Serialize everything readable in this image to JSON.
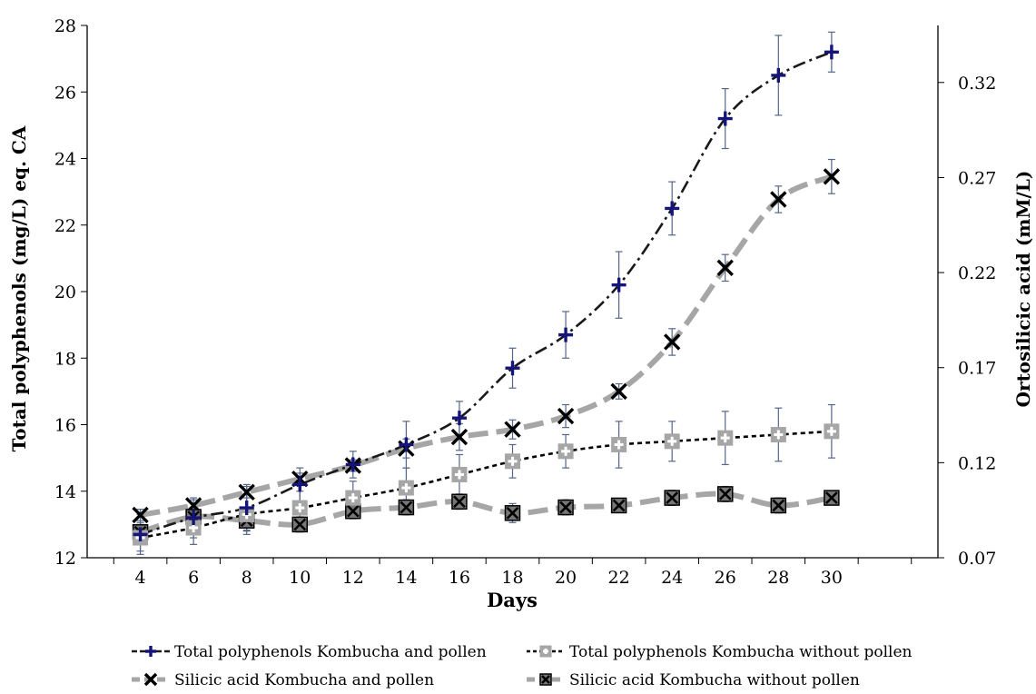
{
  "chart_data": {
    "type": "line",
    "title": "",
    "xlabel": "Days",
    "ylabel": "Total polyphenols (mg/L) eq. CA",
    "y2label": "Ortosilicic acid (mM/L)",
    "xlim": [
      2,
      34
    ],
    "ylim": [
      12,
      28
    ],
    "y2lim": [
      0.07,
      0.35
    ],
    "x_ticks": [
      4,
      6,
      8,
      10,
      12,
      14,
      16,
      18,
      20,
      22,
      24,
      26,
      28,
      30
    ],
    "y_ticks": [
      12,
      14,
      16,
      18,
      20,
      22,
      24,
      26,
      28
    ],
    "y2_ticks": [
      0.07,
      0.12,
      0.17,
      0.22,
      0.27,
      0.32
    ],
    "grid": false,
    "legend_position": "bottom",
    "x": [
      4,
      6,
      8,
      10,
      12,
      14,
      16,
      18,
      20,
      22,
      24,
      26,
      28,
      30
    ],
    "series": [
      {
        "name": "Total polyphenols Kombucha and pollen",
        "axis": "left",
        "marker": "plus",
        "line": "dash-dot",
        "line_color": "#1a1a1a",
        "marker_color": "#14147a",
        "values": [
          12.7,
          13.2,
          13.5,
          14.2,
          14.8,
          15.4,
          16.2,
          17.7,
          18.7,
          20.2,
          22.5,
          25.2,
          26.5,
          27.2
        ],
        "errors": [
          0.6,
          0.6,
          0.7,
          0.5,
          0.4,
          0.7,
          0.5,
          0.6,
          0.7,
          1.0,
          0.8,
          0.9,
          1.2,
          0.6
        ]
      },
      {
        "name": "Total polyphenols Kombucha without pollen",
        "axis": "left",
        "marker": "square-plus",
        "line": "dotted",
        "line_color": "#000000",
        "marker_color": "#a6a6a6",
        "values": [
          12.6,
          12.9,
          13.3,
          13.5,
          13.8,
          14.1,
          14.5,
          14.9,
          15.2,
          15.4,
          15.5,
          15.6,
          15.7,
          15.8
        ],
        "errors": [
          0.4,
          0.5,
          0.6,
          0.5,
          0.5,
          0.6,
          0.6,
          0.5,
          0.5,
          0.7,
          0.6,
          0.8,
          0.8,
          0.8
        ]
      },
      {
        "name": "Silicic acid Kombucha and pollen",
        "axis": "right",
        "marker": "x",
        "line": "dashed",
        "line_color": "#a6a6a6",
        "marker_color": "#000000",
        "values": [
          0.0925,
          0.0975,
          0.1045,
          0.1115,
          0.1185,
          0.1275,
          0.1335,
          0.1375,
          0.1445,
          0.1575,
          0.1835,
          0.2225,
          0.2585,
          0.2705
        ],
        "errors": [
          0.003,
          0.003,
          0.003,
          0.003,
          0.003,
          0.005,
          0.007,
          0.005,
          0.006,
          0.004,
          0.007,
          0.007,
          0.007,
          0.009
        ]
      },
      {
        "name": "Silicic acid Kombucha without pollen",
        "axis": "right",
        "marker": "square-x",
        "line": "dashed",
        "line_color": "#a6a6a6",
        "marker_color": "#000000",
        "values": [
          0.0835,
          0.0915,
          0.0895,
          0.0875,
          0.0945,
          0.0965,
          0.0995,
          0.0935,
          0.0965,
          0.0975,
          0.1015,
          0.1035,
          0.0975,
          0.1015
        ],
        "errors": [
          0.005,
          0.005,
          0.005,
          0.004,
          0.004,
          0.004,
          0.004,
          0.005,
          0.004,
          0.003,
          0.004,
          0.004,
          0.004,
          0.003
        ]
      }
    ]
  }
}
